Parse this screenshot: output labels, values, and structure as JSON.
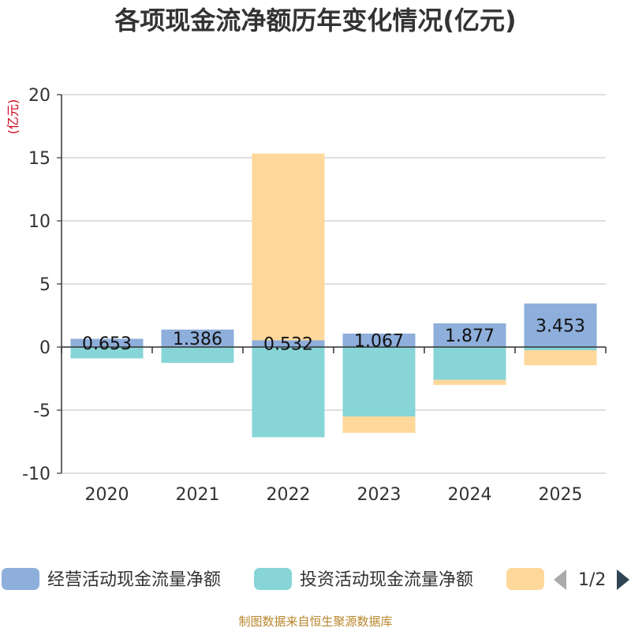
{
  "chart_data": {
    "type": "bar",
    "stacked": true,
    "title": "各项现金流净额历年变化情况(亿元)",
    "ylabel": "(亿元)",
    "xlabel": "",
    "categories": [
      "2020",
      "2021",
      "2022",
      "2023",
      "2024",
      "2025"
    ],
    "ylim": [
      -10,
      20
    ],
    "yticks": [
      -10,
      -5,
      0,
      5,
      10,
      15,
      20
    ],
    "grid": true,
    "series": [
      {
        "name": "经营活动现金流量净额",
        "color": "#8eaedb",
        "values": [
          0.653,
          1.386,
          0.532,
          1.067,
          1.877,
          3.453
        ],
        "labels": [
          "0.653",
          "1.386",
          "0.532",
          "1.067",
          "1.877",
          "3.453"
        ]
      },
      {
        "name": "投资活动现金流量净额",
        "color": "#88d5d8",
        "values": [
          -0.9,
          -1.25,
          -7.15,
          -5.5,
          -2.6,
          -0.25
        ]
      },
      {
        "name": "",
        "color": "#fed89a",
        "values": [
          0.0,
          0.0,
          14.8,
          -1.3,
          -0.4,
          -1.2
        ]
      }
    ],
    "legend": {
      "position": "bottom",
      "page": "1/2"
    }
  },
  "footer": "制图数据来自恒生聚源数据库"
}
